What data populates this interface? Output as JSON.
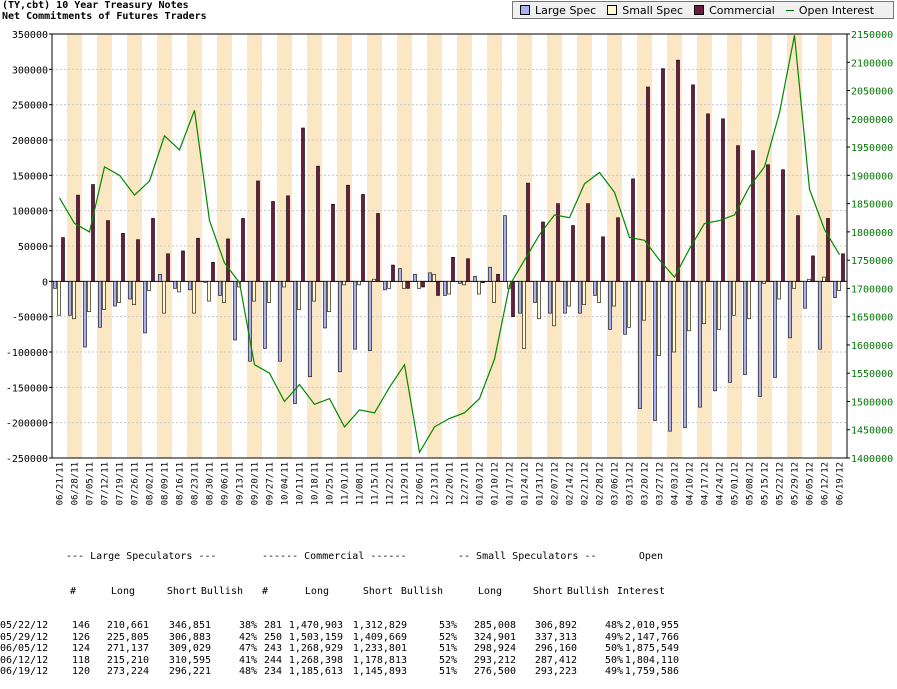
{
  "header": {
    "title": "(TY,cbt) 10 Year Treasury Notes",
    "subtitle": "Net Commitments of Futures Traders"
  },
  "legend": {
    "items": [
      {
        "label": "Large Spec",
        "color": "#aab0ee",
        "kind": "bar"
      },
      {
        "label": "Small Spec",
        "color": "#fff8d0",
        "kind": "bar"
      },
      {
        "label": "Commercial",
        "color": "#6b1b42",
        "kind": "bar"
      },
      {
        "label": "Open Interest",
        "color": "#008800",
        "kind": "line"
      }
    ]
  },
  "chart_data": {
    "type": "bar",
    "categories": [
      "06/21/11",
      "06/28/11",
      "07/05/11",
      "07/12/11",
      "07/19/11",
      "07/26/11",
      "08/02/11",
      "08/09/11",
      "08/16/11",
      "08/23/11",
      "08/30/11",
      "09/06/11",
      "09/13/11",
      "09/20/11",
      "09/27/11",
      "10/04/11",
      "10/11/11",
      "10/18/11",
      "10/25/11",
      "11/01/11",
      "11/08/11",
      "11/15/11",
      "11/22/11",
      "11/29/11",
      "12/06/11",
      "12/13/11",
      "12/20/11",
      "12/27/11",
      "01/03/12",
      "01/10/12",
      "01/17/12",
      "01/24/12",
      "01/31/12",
      "02/07/12",
      "02/14/12",
      "02/21/12",
      "02/28/12",
      "03/06/12",
      "03/13/12",
      "03/20/12",
      "03/27/12",
      "04/03/12",
      "04/10/12",
      "04/17/12",
      "04/24/12",
      "05/01/12",
      "05/08/12",
      "05/15/12",
      "05/22/12",
      "05/29/12",
      "06/05/12",
      "06/12/12",
      "06/19/12"
    ],
    "left_axis": {
      "min": -250000,
      "max": 350000,
      "step": 50000
    },
    "right_axis": {
      "min": 1400000,
      "max": 2150000,
      "step": 50000
    },
    "series": [
      {
        "name": "Large Spec",
        "color": "#aab0ee",
        "values": [
          -10000,
          -48000,
          -93000,
          -65000,
          -35000,
          -25000,
          -73000,
          10000,
          -10000,
          -12000,
          0,
          -20000,
          -83000,
          -113000,
          -95000,
          -113000,
          -173000,
          -135000,
          -66000,
          -128000,
          -96000,
          -98000,
          -12000,
          18000,
          10000,
          12000,
          -20000,
          -3000,
          7000,
          20000,
          93000,
          -45000,
          -30000,
          -45000,
          -45000,
          -45000,
          -20000,
          -68000,
          -75000,
          -180000,
          -197000,
          -212000,
          -207000,
          -178000,
          -155000,
          -143000,
          -132000,
          -163000,
          -136000,
          -80000,
          -38000,
          -96000,
          -23000
        ]
      },
      {
        "name": "Small Spec",
        "color": "#fff8d0",
        "values": [
          -48000,
          -53000,
          -43000,
          -40000,
          -30000,
          -33000,
          -13000,
          -45000,
          -15000,
          -45000,
          -28000,
          -30000,
          -8000,
          -28000,
          -30000,
          -8000,
          -40000,
          -28000,
          -43000,
          -5000,
          -5000,
          3000,
          -10000,
          -10000,
          -10000,
          10000,
          -18000,
          -5000,
          -18000,
          -30000,
          -10000,
          -95000,
          -53000,
          -63000,
          -35000,
          -33000,
          -30000,
          -35000,
          -65000,
          -55000,
          -105000,
          -100000,
          -70000,
          -60000,
          -68000,
          -48000,
          -53000,
          -3000,
          -25000,
          -10000,
          3000,
          6000,
          -13000
        ]
      },
      {
        "name": "Commercial",
        "color": "#6b1b42",
        "values": [
          62000,
          122000,
          137000,
          86000,
          68000,
          59000,
          89000,
          39000,
          43000,
          61000,
          27000,
          60000,
          89000,
          142000,
          113000,
          121000,
          217000,
          163000,
          109000,
          136000,
          123000,
          96000,
          23000,
          -10000,
          -8000,
          -20000,
          34000,
          32000,
          -2000,
          10000,
          -50000,
          139000,
          84000,
          110000,
          79000,
          110000,
          63000,
          90000,
          145000,
          275000,
          301000,
          313000,
          278000,
          237000,
          230000,
          192000,
          185000,
          165000,
          158000,
          93000,
          36000,
          89000,
          39000
        ]
      },
      {
        "name": "Open Interest",
        "color": "#008800",
        "values": [
          1860000,
          1815000,
          1800000,
          1915000,
          1900000,
          1865000,
          1890000,
          1970000,
          1945000,
          2015000,
          1820000,
          1745000,
          1710000,
          1565000,
          1550000,
          1500000,
          1530000,
          1495000,
          1505000,
          1455000,
          1485000,
          1480000,
          1525000,
          1565000,
          1410000,
          1455000,
          1470000,
          1480000,
          1505000,
          1575000,
          1705000,
          1750000,
          1795000,
          1830000,
          1825000,
          1885000,
          1905000,
          1870000,
          1790000,
          1785000,
          1750000,
          1720000,
          1770000,
          1815000,
          1820000,
          1830000,
          1880000,
          1915000,
          2010955,
          2147766,
          1875549,
          1804110,
          1759586
        ]
      }
    ]
  },
  "table": {
    "headers": {
      "group_large": "--- Large Speculators ---",
      "group_comm": "------ Commercial ------",
      "group_small": "-- Small Speculators --",
      "open": "Open",
      "cols": [
        "#",
        "Long",
        "Short",
        "Bullish",
        "#",
        "Long",
        "Short",
        "Bullish",
        "Long",
        "Short",
        "Bullish",
        "Interest"
      ]
    },
    "rows": [
      [
        "05/22/12",
        "146",
        "210,661",
        "346,851",
        "38%",
        "281",
        "1,470,903",
        "1,312,829",
        "53%",
        "285,008",
        "306,892",
        "48%",
        "2,010,955"
      ],
      [
        "05/29/12",
        "126",
        "225,805",
        "306,883",
        "42%",
        "250",
        "1,503,159",
        "1,409,669",
        "52%",
        "324,901",
        "337,313",
        "49%",
        "2,147,766"
      ],
      [
        "06/05/12",
        "124",
        "271,137",
        "309,029",
        "47%",
        "243",
        "1,268,929",
        "1,233,801",
        "51%",
        "298,924",
        "296,160",
        "50%",
        "1,875,549"
      ],
      [
        "06/12/12",
        "118",
        "215,210",
        "310,595",
        "41%",
        "244",
        "1,268,398",
        "1,178,813",
        "52%",
        "293,212",
        "287,412",
        "50%",
        "1,804,110"
      ],
      [
        "06/19/12",
        "120",
        "273,224",
        "296,221",
        "48%",
        "234",
        "1,185,613",
        "1,145,893",
        "51%",
        "276,500",
        "293,223",
        "49%",
        "1,759,586"
      ]
    ]
  }
}
